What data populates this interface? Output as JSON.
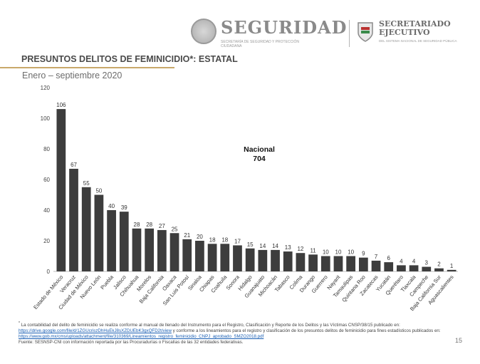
{
  "header": {
    "seguridad_logo": "SEGURIDAD",
    "seguridad_sub": "SECRETARÍA DE SEGURIDAD Y PROTECCIÓN CIUDADANA",
    "sesnsp_logo_line1": "SECRETARIADO",
    "sesnsp_logo_line2": "EJECUTIVO",
    "sesnsp_sub": "DEL SISTEMA NACIONAL DE SEGURIDAD PÚBLICA"
  },
  "title": "PRESUNTOS DELITOS DE FEMINICIDIO*: ESTATAL",
  "subtitle": "Enero – septiembre 2020",
  "colors": {
    "bar": "#3d3d3d",
    "title_rule": "#c9a86a",
    "link": "#1a5fb4"
  },
  "chart_data": {
    "type": "bar",
    "categories": [
      "Estado de México",
      "Veracruz",
      "Ciudad de México",
      "Nuevo León",
      "Puebla",
      "Jalisco",
      "Chihuahua",
      "Morelos",
      "Baja California",
      "Oaxaca",
      "San Luis Potosí",
      "Sinaloa",
      "Chiapas",
      "Coahuila",
      "Sonora",
      "Hidalgo",
      "Guanajuato",
      "Michoacán",
      "Tabasco",
      "Colima",
      "Durango",
      "Guerrero",
      "Nayarit",
      "Tamaulipas",
      "Quintana Roo",
      "Zacatecas",
      "Yucatán",
      "Querétaro",
      "Tlaxcala",
      "Campeche",
      "Baja California Sur",
      "Aguascalientes"
    ],
    "values": [
      106,
      67,
      55,
      50,
      40,
      39,
      28,
      28,
      27,
      25,
      21,
      20,
      18,
      18,
      17,
      15,
      14,
      14,
      13,
      12,
      11,
      10,
      10,
      10,
      9,
      7,
      6,
      4,
      4,
      3,
      2,
      1
    ],
    "ylim": [
      0,
      120
    ],
    "yticks": [
      0,
      20,
      40,
      60,
      80,
      100,
      120
    ],
    "annotation": {
      "line1": "Nacional",
      "line2": "704"
    },
    "grid": false,
    "legend": "none"
  },
  "footnote": {
    "star": "*",
    "text1": " La contabilidad del delito de feminicidio se realiza conforme al manual de llenado del Instrumento para el Registro, Clasificación y Reporte de los Delitos y las Víctimas CNSP/38/15 publicado en: ",
    "link1": "https://drive.google.com/file/d/1ZGUcriszDhHuEkJ8sXZDUEbK3gxQFD2t/view",
    "text2": " y conforme a los lineamientos para el registro y clasificación de los presuntos delitos de feminicidio para fines estadísticos publicados en: ",
    "link2": "https://www.gob.mx/cms/uploads/attachment/file/310369/Lineamientos_registro_feminicidio_CNPJ_aprobado_SMZO2018.pdf",
    "source": "Fuente: SESNSP-CNI con información reportada por las Procuradurías o Fiscalías de las 32 entidades federativas."
  },
  "page_number": "15"
}
